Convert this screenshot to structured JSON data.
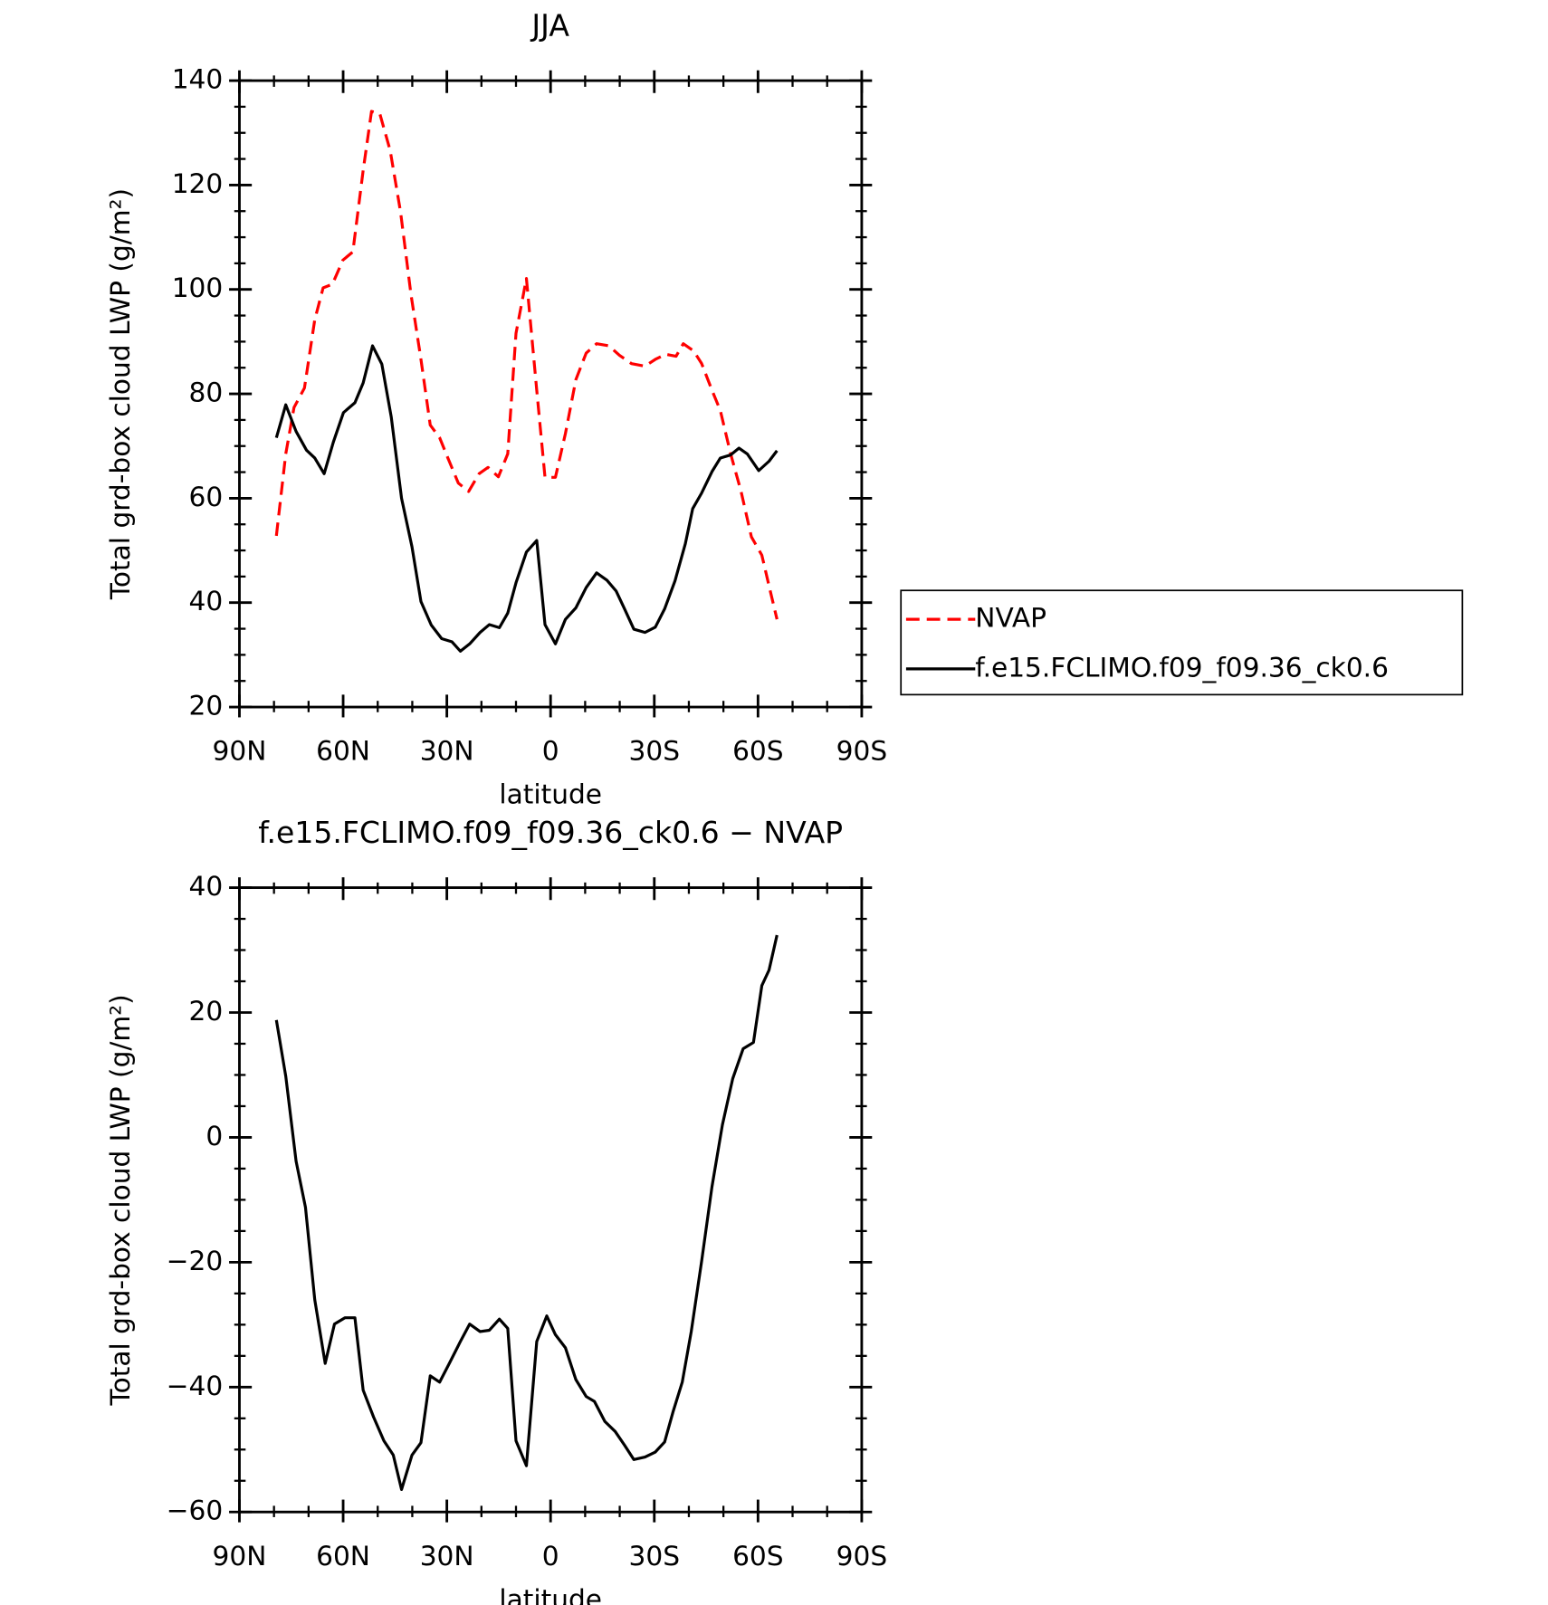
{
  "chart_data": [
    {
      "type": "line",
      "title": "JJA",
      "xlabel": "latitude",
      "ylabel": "Total grd-box cloud LWP (g/m²)",
      "xlim": [
        90,
        -90
      ],
      "xticks": [
        {
          "value": 90,
          "label": "90N"
        },
        {
          "value": 60,
          "label": "60N"
        },
        {
          "value": 30,
          "label": "30N"
        },
        0,
        {
          "value": -30,
          "label": "30S"
        },
        {
          "value": -60,
          "label": "60S"
        },
        {
          "value": -90,
          "label": "90S"
        }
      ],
      "xminorticks": [
        80,
        70,
        50,
        40,
        20,
        10,
        -10,
        -20,
        -40,
        -50,
        -70,
        -80
      ],
      "ylim": [
        20,
        140
      ],
      "yticks": [
        20,
        40,
        60,
        80,
        100,
        120,
        140
      ],
      "yminorticks": [
        25,
        30,
        35,
        45,
        50,
        55,
        65,
        70,
        75,
        85,
        90,
        95,
        105,
        110,
        115,
        125,
        130,
        135
      ],
      "legend": "right",
      "series": [
        {
          "name": "NVAP",
          "color": "#ff0000",
          "dash": true,
          "x": [
            79.3,
            76.6,
            74.2,
            71.2,
            68.2,
            65.8,
            63.1,
            60.1,
            57.2,
            54.2,
            51.8,
            49.4,
            46.4,
            43.4,
            40.4,
            37.5,
            34.8,
            32.1,
            29.7,
            26.7,
            23.7,
            20.7,
            18.1,
            15.1,
            12.4,
            10,
            7,
            4,
            1.6,
            -1.4,
            -4.3,
            -7.3,
            -10.3,
            -13.3,
            -16.9,
            -19.9,
            -23.4,
            -27.3,
            -30.3,
            -33.3,
            -36.3,
            -38.4,
            -41.4,
            -43.7,
            -46.7,
            -49.1,
            -52.1,
            -55.1,
            -58.1,
            -61.1,
            -63.2,
            -65.5
          ],
          "values": [
            52.8,
            68.5,
            77.4,
            81.1,
            94.2,
            100.3,
            101,
            105.6,
            107.2,
            122.8,
            134.1,
            133.7,
            126.6,
            114.9,
            99.1,
            86.6,
            74,
            71.6,
            67.7,
            62.9,
            61.3,
            64.7,
            65.9,
            64.1,
            68.5,
            91.6,
            102.1,
            80.7,
            64,
            64,
            72.4,
            82.7,
            87.8,
            89.6,
            89.2,
            87.4,
            85.8,
            85.3,
            86.6,
            87.6,
            87.2,
            89.6,
            88.2,
            85.8,
            80.7,
            76.8,
            68.5,
            61.3,
            52.6,
            49.1,
            43.2,
            36.8
          ]
        },
        {
          "name": "f.e15.FCLIMO.f09_f09.36_ck0.6",
          "color": "#000000",
          "dash": false,
          "x": [
            79.3,
            76.6,
            73.6,
            70.6,
            68.2,
            65.5,
            62.8,
            59.9,
            56.6,
            54.2,
            51.5,
            48.8,
            46.1,
            43.1,
            40.1,
            37.5,
            34.5,
            31.5,
            28.5,
            26.1,
            23.4,
            20.4,
            17.7,
            14.8,
            12.4,
            10,
            7,
            4,
            1.6,
            -1.4,
            -4.3,
            -7.3,
            -10.3,
            -13.3,
            -16.3,
            -19,
            -21.4,
            -24.1,
            -27.3,
            -30.3,
            -33,
            -36,
            -39,
            -41.1,
            -43.7,
            -46.7,
            -49.1,
            -52.1,
            -54.5,
            -56.9,
            -60.2,
            -63.2,
            -65.5
          ],
          "values": [
            71.6,
            77.9,
            72.8,
            69.2,
            67.7,
            64.7,
            70.8,
            76.4,
            78.3,
            82.1,
            89.2,
            85.7,
            75.6,
            60,
            50.7,
            40.2,
            35.7,
            33.1,
            32.5,
            30.7,
            32.1,
            34.3,
            35.8,
            35.2,
            38,
            43.8,
            49.7,
            51.9,
            35.8,
            32.1,
            36.8,
            39,
            42.9,
            45.7,
            44.3,
            42.2,
            38.8,
            34.9,
            34.3,
            35.3,
            38.8,
            44.2,
            51.3,
            58,
            61,
            65.1,
            67.7,
            68.3,
            69.6,
            68.5,
            65.3,
            67.1,
            69.1
          ]
        }
      ]
    },
    {
      "type": "line",
      "title": "f.e15.FCLIMO.f09_f09.36_ck0.6 − NVAP",
      "xlabel": "latitude",
      "ylabel": "Total grd-box cloud LWP (g/m²)",
      "xlim": [
        90,
        -90
      ],
      "xticks": [
        {
          "value": 90,
          "label": "90N"
        },
        {
          "value": 60,
          "label": "60N"
        },
        {
          "value": 30,
          "label": "30N"
        },
        0,
        {
          "value": -30,
          "label": "30S"
        },
        {
          "value": -60,
          "label": "60S"
        },
        {
          "value": -90,
          "label": "90S"
        }
      ],
      "xminorticks": [
        80,
        70,
        50,
        40,
        20,
        10,
        -10,
        -20,
        -40,
        -50,
        -70,
        -80
      ],
      "ylim": [
        -60,
        40
      ],
      "yticks": [
        {
          "value": -60,
          "label": "−60"
        },
        {
          "value": -40,
          "label": "−40"
        },
        {
          "value": -20,
          "label": "−20"
        },
        0,
        20,
        40
      ],
      "yminorticks": [
        -55,
        -50,
        -45,
        -35,
        -30,
        -25,
        -15,
        -10,
        -5,
        5,
        10,
        15,
        25,
        30,
        35
      ],
      "series": [
        {
          "color": "#000000",
          "dash": false,
          "x": [
            79.3,
            76.6,
            73.6,
            70.9,
            68.2,
            65.2,
            62.5,
            59.5,
            56.6,
            54.2,
            51.2,
            48.2,
            45.5,
            43.1,
            40.1,
            37.5,
            34.8,
            32.1,
            29.1,
            26.1,
            23.4,
            20.4,
            17.7,
            14.8,
            12.4,
            10,
            7,
            4,
            1.1,
            -1.4,
            -4.3,
            -7.3,
            -10.3,
            -12.7,
            -15.7,
            -18.7,
            -21.4,
            -24.1,
            -27.3,
            -30.3,
            -33,
            -35.4,
            -38.1,
            -40.7,
            -43.7,
            -46.7,
            -49.7,
            -52.7,
            -55.7,
            -58.7,
            -61.1,
            -63.2,
            -65.5
          ],
          "values": [
            18.8,
            9.8,
            -3.8,
            -11.2,
            -26,
            -36.2,
            -29.9,
            -28.9,
            -28.9,
            -40.5,
            -44.8,
            -48.6,
            -50.9,
            -56.4,
            -50.9,
            -48.9,
            -38.2,
            -39.2,
            -36,
            -32.7,
            -29.9,
            -31.1,
            -30.9,
            -29.1,
            -30.6,
            -48.6,
            -52.6,
            -32.7,
            -28.6,
            -31.6,
            -33.7,
            -38.8,
            -41.5,
            -42.3,
            -45.5,
            -47.1,
            -49.3,
            -51.6,
            -51.2,
            -50.4,
            -48.8,
            -44,
            -39.2,
            -31.1,
            -19.8,
            -7.9,
            2,
            9.4,
            14.2,
            15.2,
            24.3,
            26.8,
            32.4
          ]
        }
      ]
    }
  ]
}
